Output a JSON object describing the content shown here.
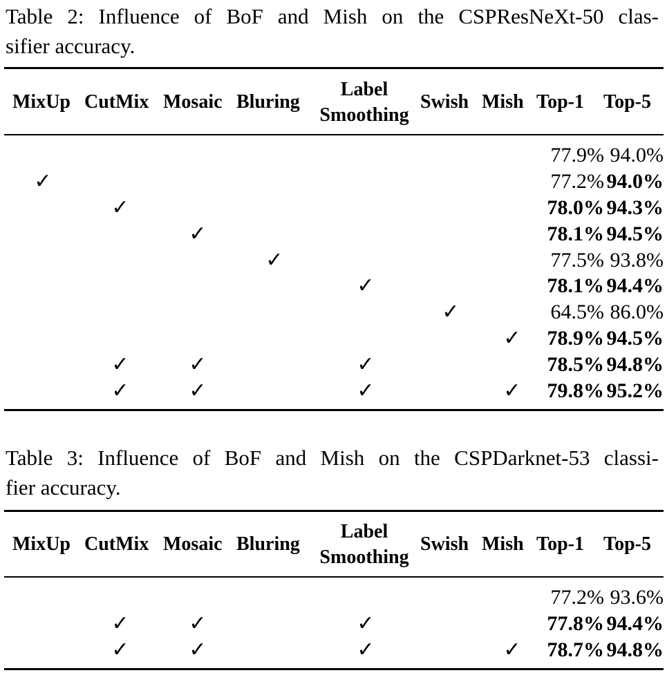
{
  "columns": {
    "mixup": "MixUp",
    "cutmix": "CutMix",
    "mosaic": "Mosaic",
    "bluring": "Bluring",
    "label_smoothing_1": "Label",
    "label_smoothing_2": "Smoothing",
    "swish": "Swish",
    "mish": "Mish",
    "top1": "Top-1",
    "top5": "Top-5"
  },
  "check_mark": "✓",
  "table2": {
    "caption_line1": "Table 2: Influence of BoF and Mish on the CSPResNeXt-50 clas-",
    "caption_line2": "sifier accuracy.",
    "rows": [
      {
        "mixup": false,
        "cutmix": false,
        "mosaic": false,
        "bluring": false,
        "label_smoothing": false,
        "swish": false,
        "mish": false,
        "top1": "77.9%",
        "top1_bold": false,
        "top5": "94.0%",
        "top5_bold": false
      },
      {
        "mixup": true,
        "cutmix": false,
        "mosaic": false,
        "bluring": false,
        "label_smoothing": false,
        "swish": false,
        "mish": false,
        "top1": "77.2%",
        "top1_bold": false,
        "top5": "94.0%",
        "top5_bold": true
      },
      {
        "mixup": false,
        "cutmix": true,
        "mosaic": false,
        "bluring": false,
        "label_smoothing": false,
        "swish": false,
        "mish": false,
        "top1": "78.0%",
        "top1_bold": true,
        "top5": "94.3%",
        "top5_bold": true
      },
      {
        "mixup": false,
        "cutmix": false,
        "mosaic": true,
        "bluring": false,
        "label_smoothing": false,
        "swish": false,
        "mish": false,
        "top1": "78.1%",
        "top1_bold": true,
        "top5": "94.5%",
        "top5_bold": true
      },
      {
        "mixup": false,
        "cutmix": false,
        "mosaic": false,
        "bluring": true,
        "label_smoothing": false,
        "swish": false,
        "mish": false,
        "top1": "77.5%",
        "top1_bold": false,
        "top5": "93.8%",
        "top5_bold": false
      },
      {
        "mixup": false,
        "cutmix": false,
        "mosaic": false,
        "bluring": false,
        "label_smoothing": true,
        "swish": false,
        "mish": false,
        "top1": "78.1%",
        "top1_bold": true,
        "top5": "94.4%",
        "top5_bold": true
      },
      {
        "mixup": false,
        "cutmix": false,
        "mosaic": false,
        "bluring": false,
        "label_smoothing": false,
        "swish": true,
        "mish": false,
        "top1": "64.5%",
        "top1_bold": false,
        "top5": "86.0%",
        "top5_bold": false
      },
      {
        "mixup": false,
        "cutmix": false,
        "mosaic": false,
        "bluring": false,
        "label_smoothing": false,
        "swish": false,
        "mish": true,
        "top1": "78.9%",
        "top1_bold": true,
        "top5": "94.5%",
        "top5_bold": true
      },
      {
        "mixup": false,
        "cutmix": true,
        "mosaic": true,
        "bluring": false,
        "label_smoothing": true,
        "swish": false,
        "mish": false,
        "top1": "78.5%",
        "top1_bold": true,
        "top5": "94.8%",
        "top5_bold": true
      },
      {
        "mixup": false,
        "cutmix": true,
        "mosaic": true,
        "bluring": false,
        "label_smoothing": true,
        "swish": false,
        "mish": true,
        "top1": "79.8%",
        "top1_bold": true,
        "top5": "95.2%",
        "top5_bold": true
      }
    ]
  },
  "table3": {
    "caption_line1": "Table 3: Influence of BoF and Mish on the CSPDarknet-53 classi-",
    "caption_line2": "fier accuracy.",
    "rows": [
      {
        "mixup": false,
        "cutmix": false,
        "mosaic": false,
        "bluring": false,
        "label_smoothing": false,
        "swish": false,
        "mish": false,
        "top1": "77.2%",
        "top1_bold": false,
        "top5": "93.6%",
        "top5_bold": false
      },
      {
        "mixup": false,
        "cutmix": true,
        "mosaic": true,
        "bluring": false,
        "label_smoothing": true,
        "swish": false,
        "mish": false,
        "top1": "77.8%",
        "top1_bold": true,
        "top5": "94.4%",
        "top5_bold": true
      },
      {
        "mixup": false,
        "cutmix": true,
        "mosaic": true,
        "bluring": false,
        "label_smoothing": true,
        "swish": false,
        "mish": true,
        "top1": "78.7%",
        "top1_bold": true,
        "top5": "94.8%",
        "top5_bold": true
      }
    ]
  }
}
